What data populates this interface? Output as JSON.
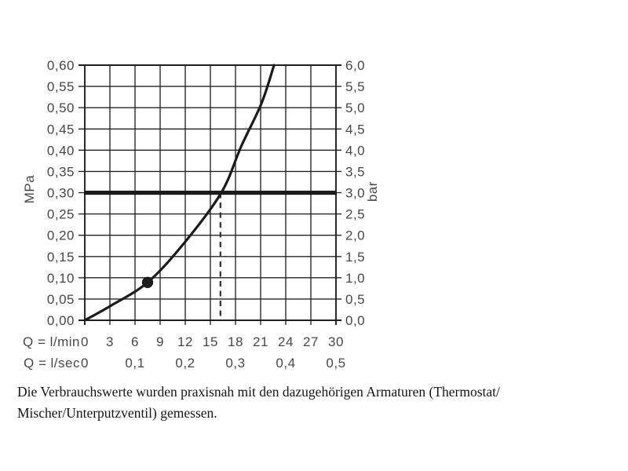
{
  "page": {
    "caption_lines": [
      "Die Verbrauchswerte wurden praxisnah mit den dazugehörigen Armaturen (Thermostat/",
      "Mischer/Unterputzventil) gemessen."
    ]
  },
  "chart_data": {
    "type": "line",
    "title": "",
    "grid": true,
    "legend": "none",
    "x_axis": {
      "primary": {
        "label": "Q = l/min",
        "range": [
          0,
          30
        ],
        "ticks": [
          "0",
          "3",
          "6",
          "9",
          "12",
          "15",
          "18",
          "21",
          "24",
          "27",
          "30"
        ],
        "tick_values": [
          0,
          3,
          6,
          9,
          12,
          15,
          18,
          21,
          24,
          27,
          30
        ]
      },
      "secondary": {
        "label": "Q = l/sec",
        "range": [
          0,
          0.5
        ],
        "ticks": [
          {
            "label": "0",
            "lmin": 0
          },
          {
            "label": "0,1",
            "lmin": 6
          },
          {
            "label": "0,2",
            "lmin": 12
          },
          {
            "label": "0,3",
            "lmin": 18
          },
          {
            "label": "0,4",
            "lmin": 24
          },
          {
            "label": "0,5",
            "lmin": 30
          }
        ]
      }
    },
    "y_axis_left": {
      "label": "MPa",
      "range": [
        0,
        0.6
      ],
      "step": 0.05,
      "tick_labels": [
        "0,60",
        "0,55",
        "0,50",
        "0,45",
        "0,40",
        "0,35",
        "0,30",
        "0,25",
        "0,20",
        "0,15",
        "0,10",
        "0,05",
        "0,00"
      ]
    },
    "y_axis_right": {
      "label": "bar",
      "range": [
        0,
        6
      ],
      "step": 0.5,
      "tick_labels": [
        "6,0",
        "5,5",
        "5,0",
        "4,5",
        "4,0",
        "3,5",
        "3,0",
        "2,5",
        "2,0",
        "1,5",
        "1,0",
        "0,5",
        "0,0"
      ]
    },
    "series": [
      {
        "name": "flow-pressure-curve",
        "points_lmin_mpa": [
          [
            0,
            0
          ],
          [
            3,
            0.033
          ],
          [
            7.5,
            0.089
          ],
          [
            11.8,
            0.18
          ],
          [
            16.3,
            0.3
          ],
          [
            18.7,
            0.41
          ],
          [
            21.1,
            0.51
          ],
          [
            22.6,
            0.6
          ]
        ]
      }
    ],
    "reference_line": {
      "value_mpa": 0.3,
      "value_bar": 3.0
    },
    "dashed_guide": {
      "lmin": 16.2,
      "from_mpa": 0.3,
      "to_mpa": 0
    },
    "marker_point": {
      "lmin": 7.5,
      "mpa": 0.089
    },
    "colors": {
      "line": "#1b1b1d",
      "grid": "#232325",
      "frame": "#1f1f21",
      "label": "#47474a",
      "reference": "#1b1b1d",
      "guide": "#2e2e30"
    }
  }
}
